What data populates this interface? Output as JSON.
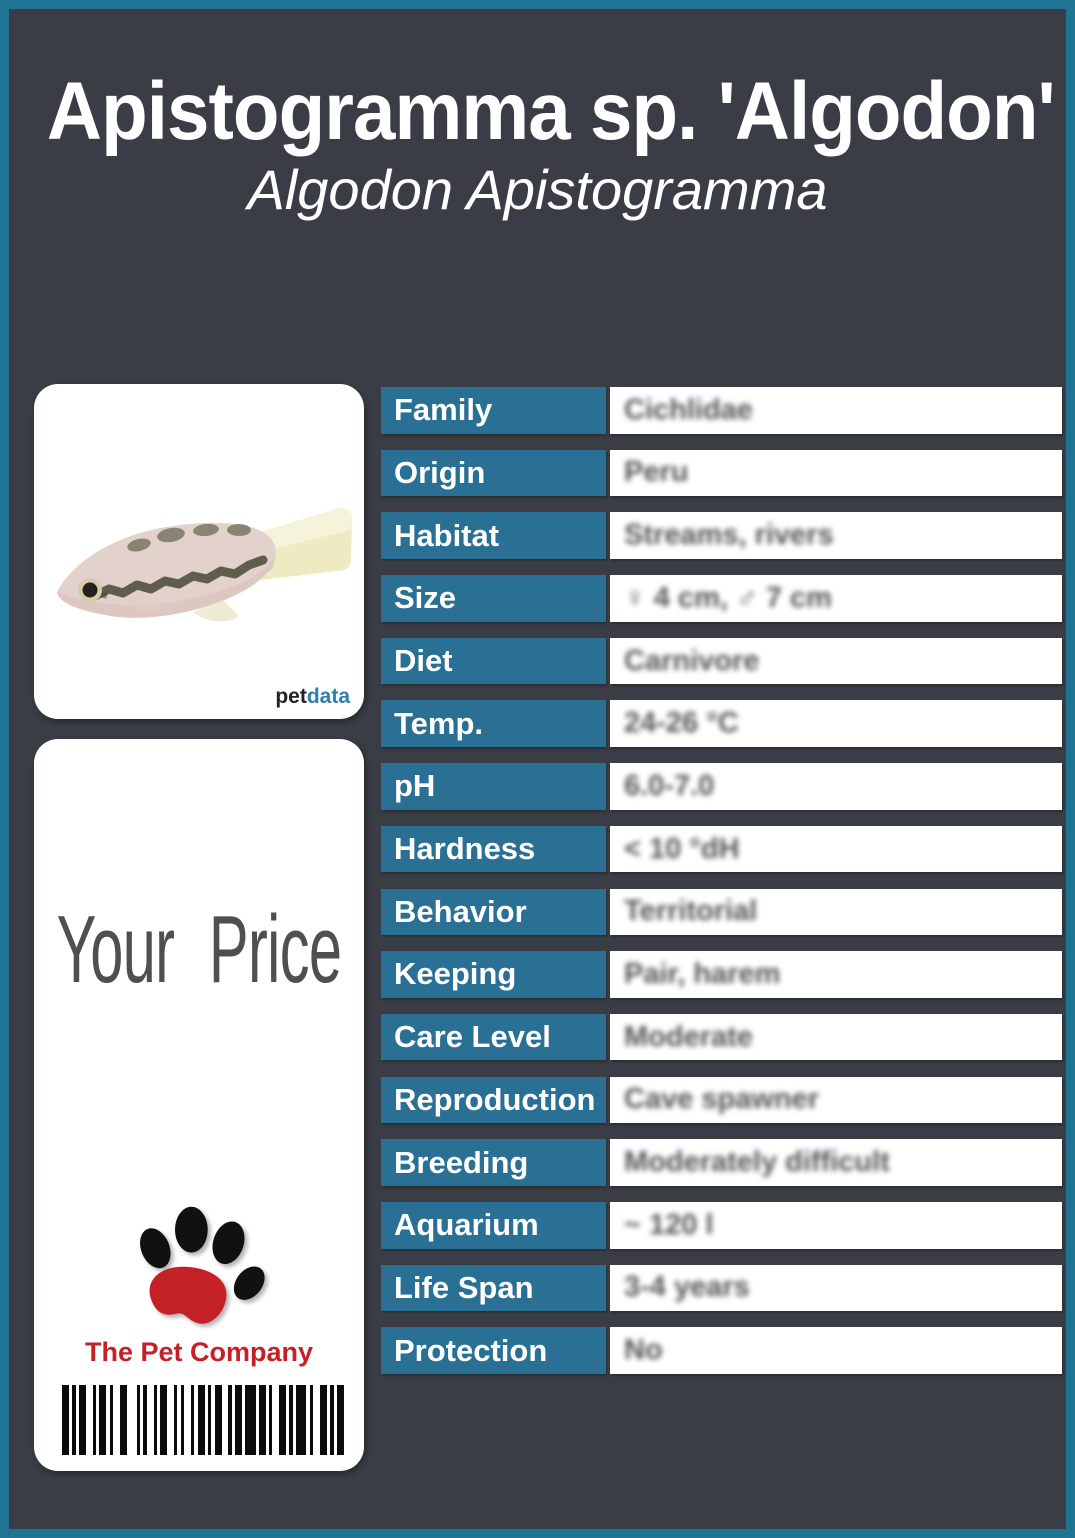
{
  "header": {
    "title": "Apistogramma sp. 'Algodon'",
    "subtitle": "Algodon Apistogramma"
  },
  "photo_card": {
    "logo_pet": "pet",
    "logo_data": "data"
  },
  "price_card": {
    "price_label": "Your Price",
    "company": "The Pet Company",
    "barcode_pattern": [
      2,
      1,
      1,
      1,
      2,
      2,
      1,
      1,
      2,
      1,
      1,
      2,
      2,
      3,
      1,
      1,
      1,
      2,
      1,
      1,
      2,
      2,
      1,
      1,
      1,
      2,
      1,
      1,
      2,
      1,
      1,
      1,
      2,
      2,
      1,
      1,
      2,
      1,
      3,
      1,
      2,
      1,
      1,
      2,
      2,
      1,
      1,
      1,
      3,
      1,
      1,
      2,
      2,
      1,
      1,
      1,
      2
    ]
  },
  "table": {
    "rows": [
      {
        "label": "Family",
        "value": "Cichlidae"
      },
      {
        "label": "Origin",
        "value": "Peru"
      },
      {
        "label": "Habitat",
        "value": "Streams, rivers"
      },
      {
        "label": "Size",
        "value": "♀ 4 cm, ♂ 7 cm"
      },
      {
        "label": "Diet",
        "value": "Carnivore"
      },
      {
        "label": "Temp.",
        "value": "24-26 °C"
      },
      {
        "label": "pH",
        "value": "6.0-7.0"
      },
      {
        "label": "Hardness",
        "value": "< 10 °dH"
      },
      {
        "label": "Behavior",
        "value": "Territorial"
      },
      {
        "label": "Keeping",
        "value": "Pair, harem"
      },
      {
        "label": "Care Level",
        "value": "Moderate"
      },
      {
        "label": "Reproduction",
        "value": "Cave spawner"
      },
      {
        "label": "Breeding",
        "value": "Moderately difficult"
      },
      {
        "label": "Aquarium",
        "value": "~ 120 l"
      },
      {
        "label": "Life Span",
        "value": "3-4 years"
      },
      {
        "label": "Protection",
        "value": "No"
      }
    ]
  },
  "colors": {
    "accent_teal": "#1f7494",
    "label_blue": "#2a7095",
    "background_dark": "#3a3d45",
    "company_red": "#c42127",
    "petdata_blue": "#2d7fad"
  }
}
